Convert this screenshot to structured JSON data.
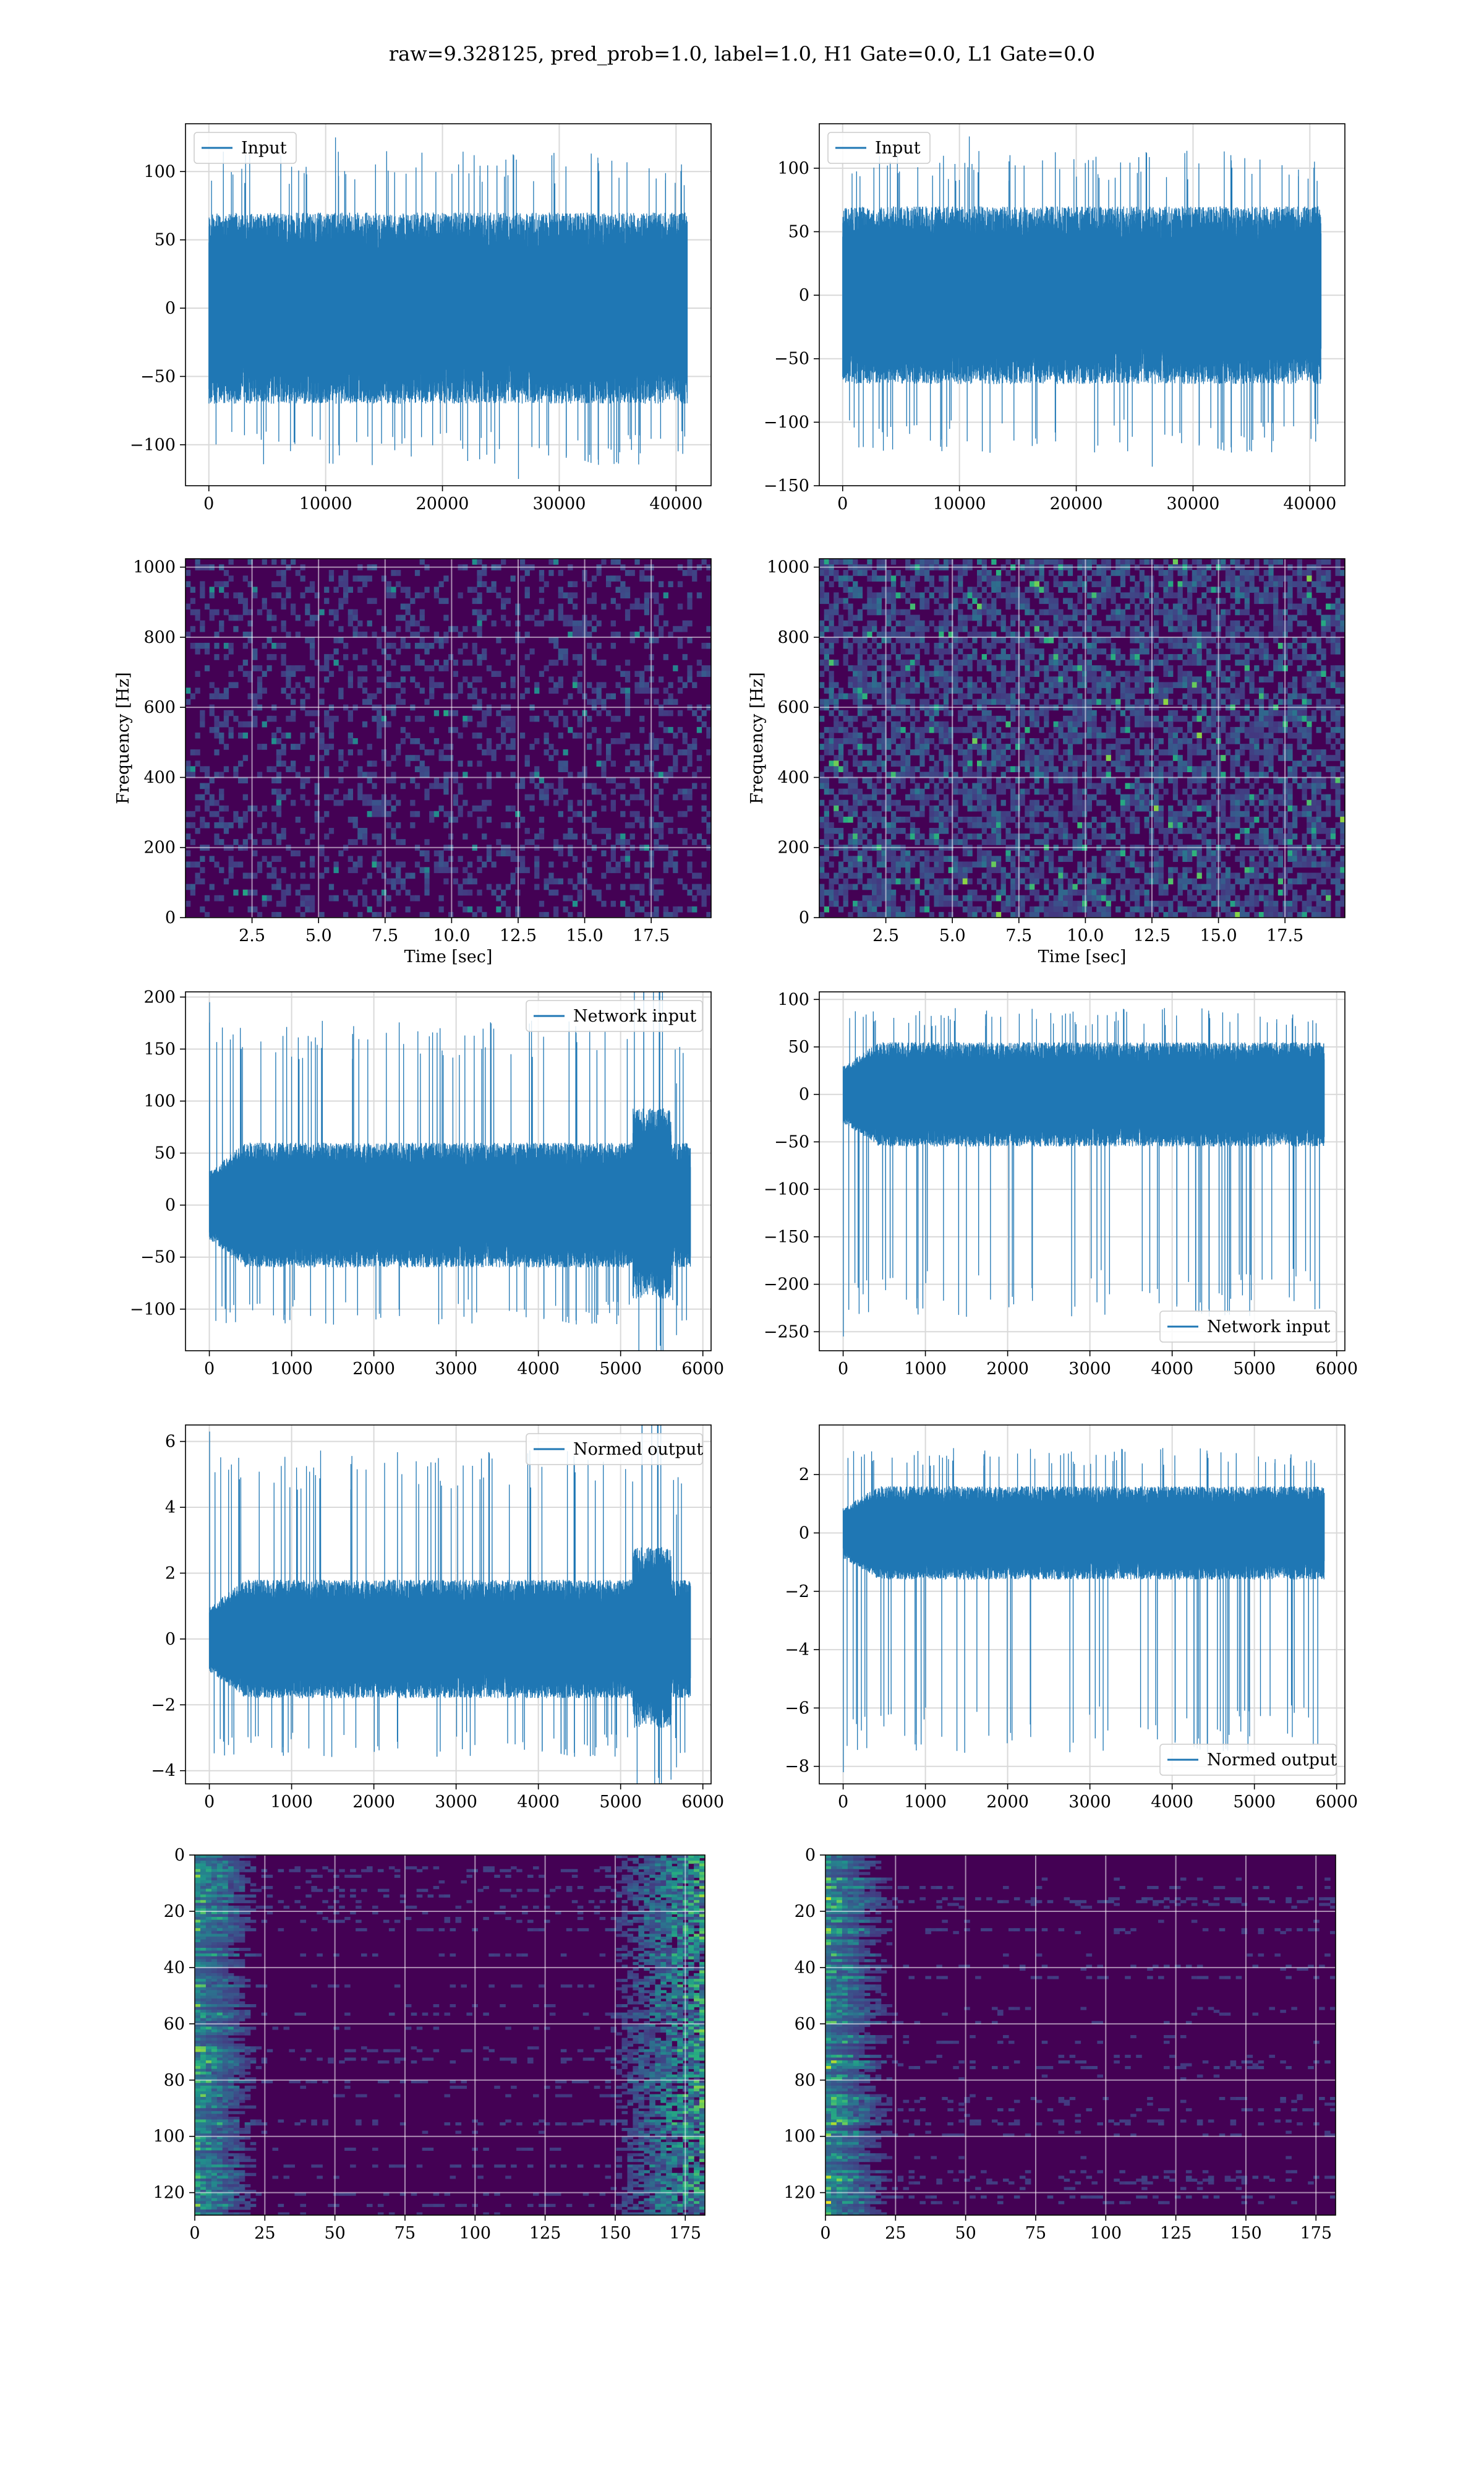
{
  "suptitle": "raw=9.328125, pred_prob=1.0, label=1.0, H1 Gate=0.0, L1 Gate=0.0",
  "colors": {
    "line": "#1f77b4",
    "grid": "#d9d9d9",
    "viridis": [
      "#440154",
      "#472d7b",
      "#3b528b",
      "#2c728e",
      "#21918c",
      "#28ae80",
      "#5ec962",
      "#addc30",
      "#fde725"
    ]
  },
  "chart_data": [
    {
      "id": "r1c1",
      "type": "line",
      "title": "",
      "xlabel": "",
      "ylabel": "",
      "xlim": [
        -2000,
        43000
      ],
      "ylim": [
        -130,
        135
      ],
      "xticks": [
        0,
        10000,
        20000,
        30000,
        40000
      ],
      "yticks": [
        -100,
        -50,
        0,
        50,
        100
      ],
      "grid": true,
      "legend": {
        "label": "Input",
        "loc": "upper left"
      },
      "series": [
        {
          "name": "Input",
          "x_range": [
            0,
            40960
          ],
          "band": [
            -70,
            70
          ],
          "spike_range": [
            -125,
            125
          ],
          "noise": "uniform"
        }
      ]
    },
    {
      "id": "r1c2",
      "type": "line",
      "title": "",
      "xlabel": "",
      "ylabel": "",
      "xlim": [
        -2000,
        43000
      ],
      "ylim": [
        -150,
        135
      ],
      "xticks": [
        0,
        10000,
        20000,
        30000,
        40000
      ],
      "yticks": [
        -150,
        -100,
        -50,
        0,
        50,
        100
      ],
      "grid": true,
      "legend": {
        "label": "Input",
        "loc": "upper left"
      },
      "series": [
        {
          "name": "Input",
          "x_range": [
            0,
            40960
          ],
          "band": [
            -70,
            70
          ],
          "spike_range": [
            -135,
            125
          ],
          "noise": "uniform"
        }
      ]
    },
    {
      "id": "r2c1",
      "type": "heatmap",
      "title": "",
      "xlabel": "Time [sec]",
      "ylabel": "Frequency [Hz]",
      "xlim": [
        0,
        19.75
      ],
      "ylim": [
        0,
        1024
      ],
      "xticks": [
        2.5,
        5.0,
        7.5,
        10.0,
        12.5,
        15.0,
        17.5
      ],
      "yticks": [
        0,
        200,
        400,
        600,
        800,
        1000
      ],
      "grid": true,
      "pattern": "spectrogram"
    },
    {
      "id": "r2c2",
      "type": "heatmap",
      "title": "",
      "xlabel": "Time [sec]",
      "ylabel": "Frequency [Hz]",
      "xlim": [
        0,
        19.75
      ],
      "ylim": [
        0,
        1024
      ],
      "xticks": [
        2.5,
        5.0,
        7.5,
        10.0,
        12.5,
        15.0,
        17.5
      ],
      "yticks": [
        0,
        200,
        400,
        600,
        800,
        1000
      ],
      "grid": true,
      "pattern": "spectrogram-bright"
    },
    {
      "id": "r3c1",
      "type": "line",
      "title": "",
      "xlabel": "",
      "ylabel": "",
      "xlim": [
        -290,
        6100
      ],
      "ylim": [
        -140,
        205
      ],
      "xticks": [
        0,
        1000,
        2000,
        3000,
        4000,
        5000,
        6000
      ],
      "yticks": [
        -100,
        -50,
        0,
        50,
        100,
        150,
        200
      ],
      "grid": true,
      "legend": {
        "label": "Network input",
        "loc": "upper right"
      },
      "series": [
        {
          "name": "Network input",
          "x_range": [
            0,
            5850
          ],
          "band": [
            -60,
            60
          ],
          "spike_range": [
            -125,
            195
          ],
          "noise": "taper-left-spike-end-burst"
        }
      ]
    },
    {
      "id": "r3c2",
      "type": "line",
      "title": "",
      "xlabel": "",
      "ylabel": "",
      "xlim": [
        -290,
        6100
      ],
      "ylim": [
        -270,
        108
      ],
      "xticks": [
        0,
        1000,
        2000,
        3000,
        4000,
        5000,
        6000
      ],
      "yticks": [
        -250,
        -200,
        -150,
        -100,
        -50,
        0,
        50,
        100
      ],
      "grid": true,
      "legend": {
        "label": "Network input",
        "loc": "lower right"
      },
      "series": [
        {
          "name": "Network input",
          "x_range": [
            0,
            5850
          ],
          "band": [
            -55,
            55
          ],
          "spike_range": [
            -255,
            100
          ],
          "noise": "taper-left-dip"
        }
      ]
    },
    {
      "id": "r4c1",
      "type": "line",
      "title": "",
      "xlabel": "",
      "ylabel": "",
      "xlim": [
        -290,
        6100
      ],
      "ylim": [
        -4.4,
        6.5
      ],
      "xticks": [
        0,
        1000,
        2000,
        3000,
        4000,
        5000,
        6000
      ],
      "yticks": [
        -4,
        -2,
        0,
        2,
        4,
        6
      ],
      "grid": true,
      "legend": {
        "label": "Normed output",
        "loc": "upper right"
      },
      "series": [
        {
          "name": "Normed output",
          "x_range": [
            0,
            5850
          ],
          "band": [
            -1.8,
            1.8
          ],
          "spike_range": [
            -3.9,
            6.3
          ],
          "noise": "taper-left-spike-end-burst"
        }
      ]
    },
    {
      "id": "r4c2",
      "type": "line",
      "title": "",
      "xlabel": "",
      "ylabel": "",
      "xlim": [
        -290,
        6100
      ],
      "ylim": [
        -8.6,
        3.7
      ],
      "xticks": [
        0,
        1000,
        2000,
        3000,
        4000,
        5000,
        6000
      ],
      "yticks": [
        -8,
        -6,
        -4,
        -2,
        0,
        2
      ],
      "grid": true,
      "legend": {
        "label": "Normed output",
        "loc": "lower right"
      },
      "series": [
        {
          "name": "Normed output",
          "x_range": [
            0,
            5850
          ],
          "band": [
            -1.6,
            1.6
          ],
          "spike_range": [
            -8.2,
            3.2
          ],
          "noise": "taper-left-dip"
        }
      ]
    },
    {
      "id": "r5c1",
      "type": "heatmap",
      "title": "",
      "xlabel": "",
      "ylabel": "",
      "xlim": [
        0,
        182
      ],
      "ylim": [
        128,
        0
      ],
      "xticks": [
        0,
        25,
        50,
        75,
        100,
        125,
        150,
        175
      ],
      "yticks": [
        0,
        20,
        40,
        60,
        80,
        100,
        120
      ],
      "grid": true,
      "pattern": "feature-rows-left-right"
    },
    {
      "id": "r5c2",
      "type": "heatmap",
      "title": "",
      "xlabel": "",
      "ylabel": "",
      "xlim": [
        0,
        182
      ],
      "ylim": [
        128,
        0
      ],
      "xticks": [
        0,
        25,
        50,
        75,
        100,
        125,
        150,
        175
      ],
      "yticks": [
        0,
        20,
        40,
        60,
        80,
        100,
        120
      ],
      "grid": true,
      "pattern": "feature-rows-left"
    }
  ]
}
